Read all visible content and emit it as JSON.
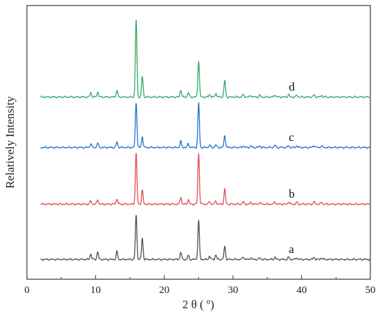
{
  "chart_data": {
    "type": "line",
    "xlabel": "2 θ ( º)",
    "ylabel": "Relatively Intensity",
    "xlim": [
      0,
      50
    ],
    "x_ticks": [
      "0",
      "10",
      "20",
      "30",
      "40",
      "50"
    ],
    "y_ticks_shown": false,
    "grid": false,
    "legend": "labels at right end of each trace",
    "peak_positions_2theta": [
      9.3,
      10.3,
      13.1,
      15.9,
      16.8,
      22.4,
      23.5,
      25.0,
      26.6,
      27.5,
      28.8,
      31.5,
      32.6,
      33.9,
      36.1,
      38.1,
      39.3,
      41.8,
      42.9
    ],
    "series": [
      {
        "name": "a",
        "color": "#4d4d4d",
        "peak_intensities": [
          10,
          14,
          14,
          80,
          38,
          13,
          7,
          70,
          6,
          8,
          24,
          5,
          3,
          3,
          4,
          4,
          3,
          4,
          3
        ]
      },
      {
        "name": "b",
        "color": "#e0494f",
        "peak_intensities": [
          6,
          8,
          10,
          92,
          25,
          13,
          8,
          92,
          5,
          6,
          27,
          4,
          3,
          3,
          4,
          4,
          3,
          4,
          3
        ]
      },
      {
        "name": "c",
        "color": "#1f6fcf",
        "peak_intensities": [
          7,
          8,
          10,
          82,
          20,
          11,
          7,
          80,
          4,
          5,
          22,
          3,
          3,
          3,
          4,
          3,
          3,
          4,
          3
        ]
      },
      {
        "name": "d",
        "color": "#2fa865",
        "peak_intensities": [
          8,
          9,
          12,
          140,
          37,
          13,
          8,
          66,
          5,
          7,
          30,
          4,
          3,
          3,
          4,
          4,
          3,
          4,
          3
        ]
      }
    ]
  }
}
